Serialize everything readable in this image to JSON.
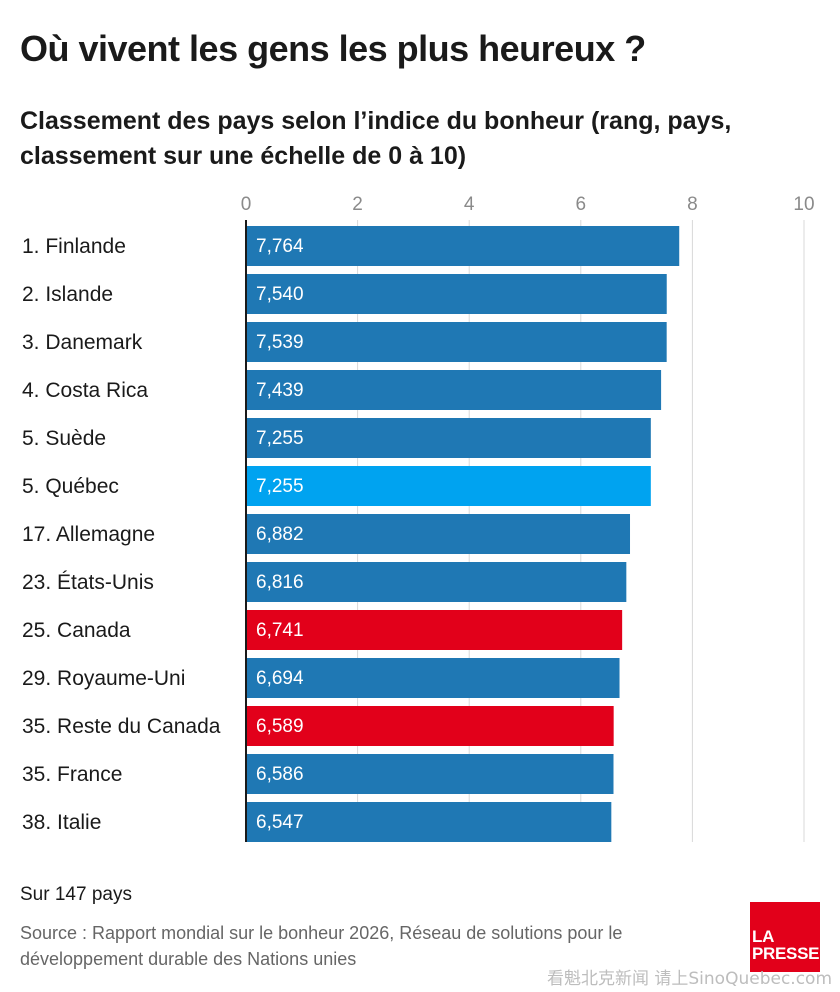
{
  "title": "Où vivent les gens les plus heureux ?",
  "subtitle": "Classement des pays selon l’indice du bonheur (rang, pays, classement sur une échelle de 0 à 10)",
  "note": "Sur 147 pays",
  "source": "Source : Rapport mondial sur le bonheur 2026, Réseau de solutions pour le développement durable des Nations unies",
  "logo": {
    "line1": "LA",
    "line2": "PRESSE"
  },
  "watermark": "看魁北克新闻 请上SinoQuebec.com",
  "colors": {
    "default_bar": "#1f78b4",
    "quebec_bar": "#00a3f0",
    "canada_bar": "#e2001a",
    "grid": "#d9d9d9",
    "axis": "#1a1a1a",
    "tick_label": "#8a8a8a"
  },
  "chart_data": {
    "type": "bar",
    "orientation": "horizontal",
    "xlim": [
      0,
      10
    ],
    "xticks": [
      0,
      2,
      4,
      6,
      8,
      10
    ],
    "grid": true,
    "categories": [
      "1. Finlande",
      "2. Islande",
      "3. Danemark",
      "4. Costa Rica",
      "5. Suède",
      "5. Québec",
      "17. Allemagne",
      "23. États-Unis",
      "25. Canada",
      "29. Royaume-Uni",
      "35. Reste du Canada",
      "35. France",
      "38. Italie"
    ],
    "values": [
      7.764,
      7.54,
      7.539,
      7.439,
      7.255,
      7.255,
      6.882,
      6.816,
      6.741,
      6.694,
      6.589,
      6.586,
      6.547
    ],
    "value_labels": [
      "7,764",
      "7,540",
      "7,539",
      "7,439",
      "7,255",
      "7,255",
      "6,882",
      "6,816",
      "6,741",
      "6,694",
      "6,589",
      "6,586",
      "6,547"
    ],
    "highlight": [
      "default",
      "default",
      "default",
      "default",
      "default",
      "quebec",
      "default",
      "default",
      "canada",
      "default",
      "canada",
      "default",
      "default"
    ]
  }
}
